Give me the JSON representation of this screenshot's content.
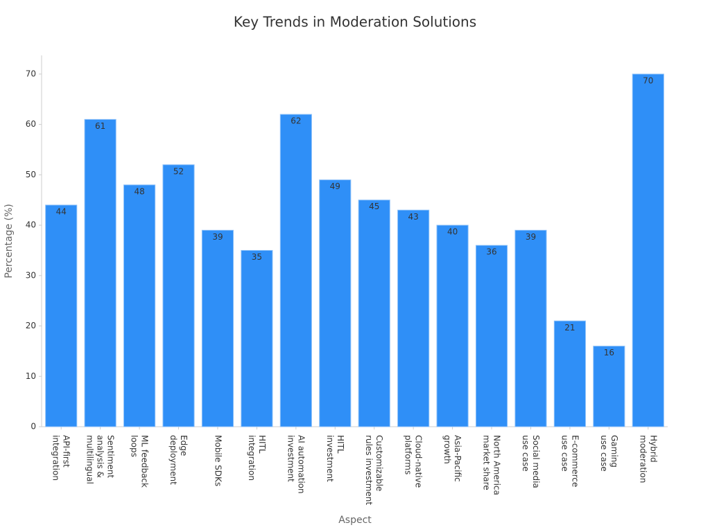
{
  "chart_data": {
    "type": "bar",
    "title": "Key Trends in Moderation Solutions",
    "x_label": "Aspect",
    "y_label": "Percentage (%)",
    "categories": [
      "API-first\nintegration",
      "Sentiment\nanalysis &\nmultilingual",
      "ML feedback\nloops",
      "Edge\ndeployment",
      "Mobile SDKs",
      "HITL\nintegration",
      "AI automation\ninvestment",
      "HITL\ninvestment",
      "Customizable\nrules investment",
      "Cloud-native\nplatforms",
      "Asia-Pacific\ngrowth",
      "North America\nmarket share",
      "Social media\nuse case",
      "E-commerce\nuse case",
      "Gaming\nuse case",
      "Hybrid\nmoderation"
    ],
    "values": [
      44,
      61,
      48,
      52,
      39,
      35,
      62,
      49,
      45,
      43,
      40,
      36,
      39,
      21,
      16,
      70
    ],
    "color": "#2f8ff7",
    "ylim": [
      0,
      73.7
    ],
    "yticks": [
      0,
      10,
      20,
      30,
      40,
      50,
      60,
      70
    ],
    "grid": false
  }
}
